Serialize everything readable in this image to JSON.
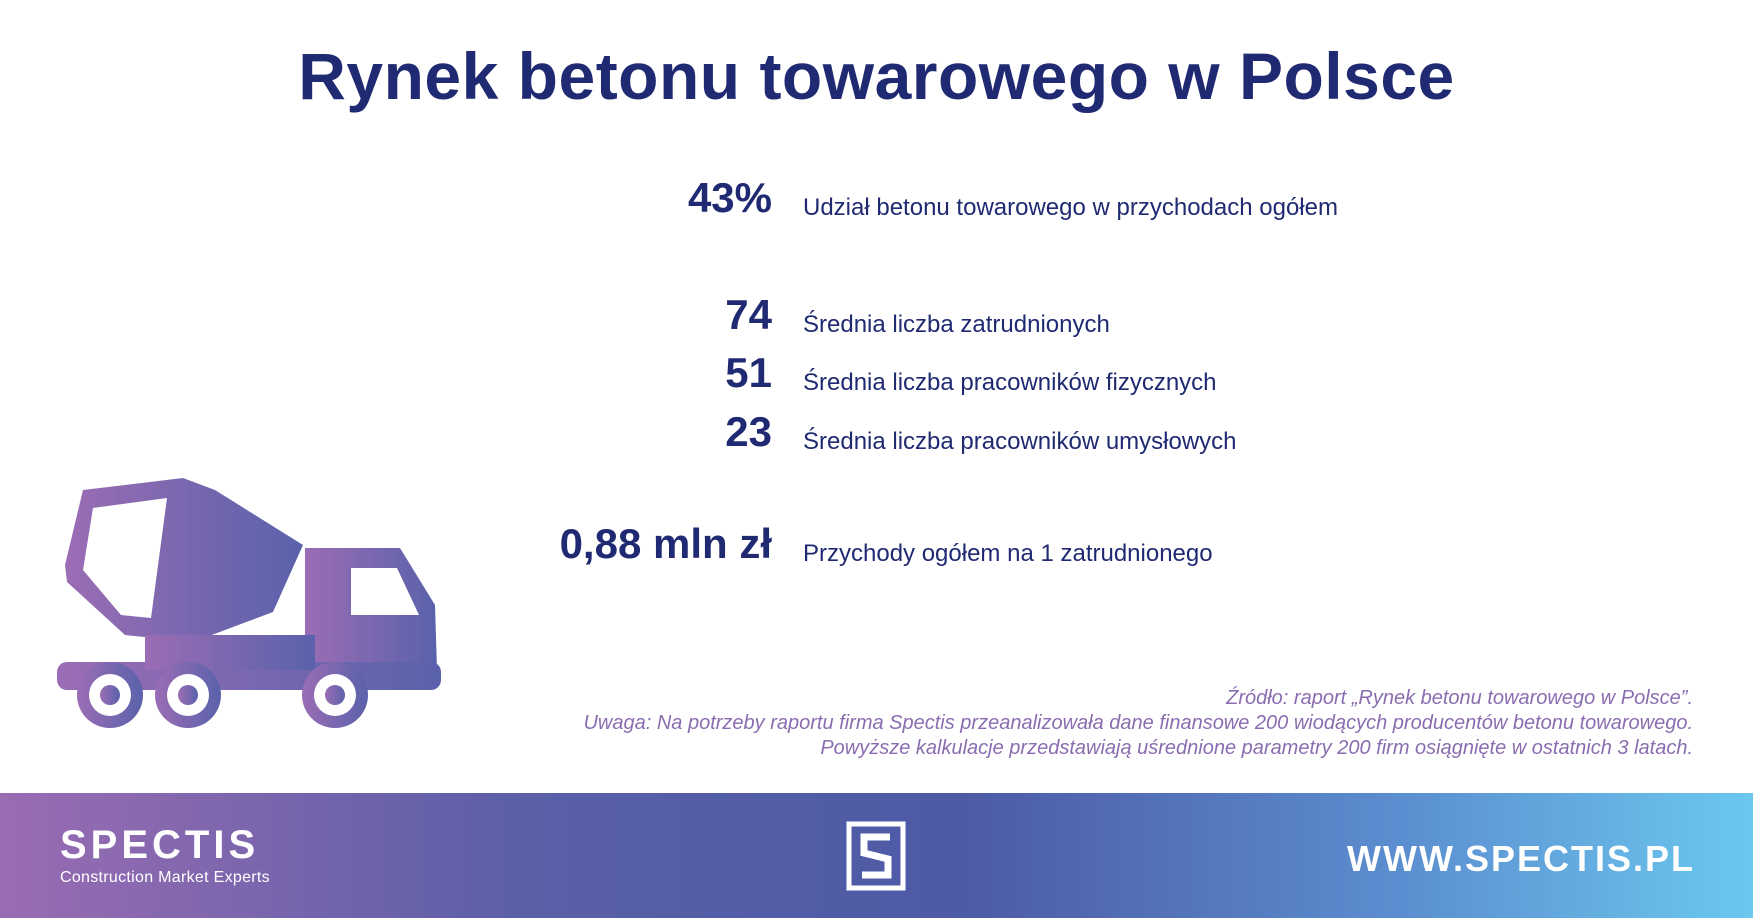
{
  "title": "Rynek betonu towarowego w Polsce",
  "stats": [
    {
      "value": "43%",
      "label": "Udział betonu towarowego w przychodach ogółem"
    },
    {
      "value": "74",
      "label": "Średnia liczba zatrudnionych"
    },
    {
      "value": "51",
      "label": "Średnia liczba pracowników fizycznych"
    },
    {
      "value": "23",
      "label": "Średnia liczba pracowników umysłowych"
    },
    {
      "value": "0,88 mln zł",
      "label": "Przychody ogółem na 1 zatrudnionego"
    }
  ],
  "notes": {
    "source": "Źródło: raport „Rynek betonu towarowego w Polsce”.",
    "remark_1": "Uwaga: Na potrzeby raportu firma Spectis przeanalizowała dane finansowe 200 wiodących producentów betonu towarowego.",
    "remark_2": "Powyższe kalkulacje przedstawiają uśrednione parametry 200 firm osiągnięte w ostatnich 3 latach."
  },
  "footer": {
    "brand_name": "SPECTIS",
    "brand_tagline": "Construction Market Experts",
    "website": "WWW.SPECTIS.PL"
  },
  "icons": {
    "illustration": "concrete-mixer-truck-icon",
    "logo": "spectis-s-logo-icon"
  },
  "colors": {
    "title": "#1f2a72",
    "notes": "#8a6db0",
    "truck_gradient_start": "#9b6db4",
    "truck_gradient_end": "#5962ab",
    "footer_gradient_start": "#9a6cb2",
    "footer_gradient_end": "#6bc8ef"
  }
}
